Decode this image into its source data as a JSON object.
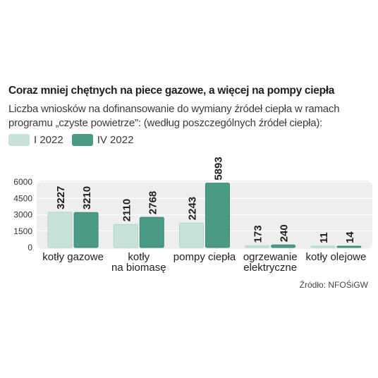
{
  "title": "Coraz mniej chętnych na piece gazowe, a więcej na pompy ciepła",
  "subtitle": "Liczba wniosków na dofinansowanie do wymiany źródeł ciepła w ramach programu „czyste powietrze”: (według poszczególnych źródeł ciepła):",
  "source": "Źródło: NFOŚiGW",
  "colors": {
    "series_1": "#c7e2d9",
    "series_2": "#4a9a86",
    "plot_bg": "#eeeeee"
  },
  "chart_data": {
    "type": "bar",
    "categories": [
      [
        "kotły gazowe"
      ],
      [
        "kotły",
        "na biomasę"
      ],
      [
        "pompy ciepła"
      ],
      [
        "ogrzewanie",
        "elektryczne"
      ],
      [
        "kotły olejowe"
      ]
    ],
    "series": [
      {
        "name": "I 2022",
        "values": [
          3227,
          2110,
          2243,
          173,
          11
        ]
      },
      {
        "name": "IV 2022",
        "values": [
          3210,
          2768,
          5893,
          240,
          14
        ]
      }
    ],
    "y_ticks": [
      0,
      1500,
      3000,
      4500,
      6000
    ],
    "ylim": [
      0,
      6000
    ],
    "legend": "top-left"
  }
}
